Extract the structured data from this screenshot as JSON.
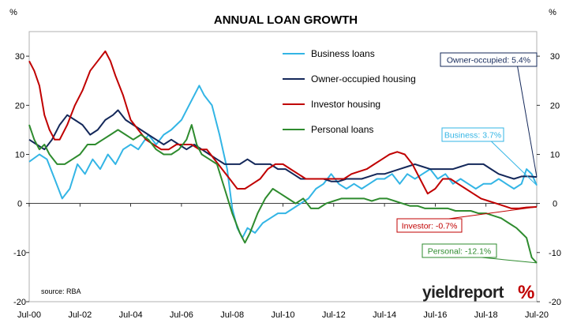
{
  "chart_data": {
    "type": "line",
    "title": "ANNUAL LOAN GROWTH",
    "ylabel_left": "%",
    "ylabel_right": "%",
    "ylim": [
      -20,
      35
    ],
    "yticks": [
      -20,
      -10,
      0,
      10,
      20,
      30
    ],
    "xlim": [
      2000.5,
      2020.5
    ],
    "xticks": [
      {
        "x": 2000.5,
        "label": "Jul-00"
      },
      {
        "x": 2002.5,
        "label": "Jul-02"
      },
      {
        "x": 2004.5,
        "label": "Jul-04"
      },
      {
        "x": 2006.5,
        "label": "Jul-06"
      },
      {
        "x": 2008.5,
        "label": "Jul-08"
      },
      {
        "x": 2010.5,
        "label": "Jul-10"
      },
      {
        "x": 2012.5,
        "label": "Jul-12"
      },
      {
        "x": 2014.5,
        "label": "Jul-14"
      },
      {
        "x": 2016.5,
        "label": "Jul-16"
      },
      {
        "x": 2018.5,
        "label": "Jul-18"
      },
      {
        "x": 2020.5,
        "label": "Jul-20"
      }
    ],
    "legend_position": "top-center",
    "source": "source: RBA",
    "series": [
      {
        "name": "Business loans",
        "color": "#33b5e5",
        "points": [
          [
            2000.5,
            8.5
          ],
          [
            2000.9,
            10
          ],
          [
            2001.2,
            9
          ],
          [
            2001.5,
            5
          ],
          [
            2001.8,
            1
          ],
          [
            2002.1,
            3
          ],
          [
            2002.4,
            8
          ],
          [
            2002.7,
            6
          ],
          [
            2003.0,
            9
          ],
          [
            2003.3,
            7
          ],
          [
            2003.6,
            10
          ],
          [
            2003.9,
            8
          ],
          [
            2004.2,
            11
          ],
          [
            2004.5,
            12
          ],
          [
            2004.8,
            11
          ],
          [
            2005.2,
            14
          ],
          [
            2005.5,
            12
          ],
          [
            2005.8,
            14
          ],
          [
            2006.1,
            15
          ],
          [
            2006.5,
            17
          ],
          [
            2006.8,
            20
          ],
          [
            2007.0,
            22
          ],
          [
            2007.2,
            24
          ],
          [
            2007.4,
            22
          ],
          [
            2007.7,
            20
          ],
          [
            2008.0,
            14
          ],
          [
            2008.3,
            7
          ],
          [
            2008.5,
            -1
          ],
          [
            2008.7,
            -5
          ],
          [
            2008.9,
            -7
          ],
          [
            2009.1,
            -5
          ],
          [
            2009.4,
            -6
          ],
          [
            2009.7,
            -4
          ],
          [
            2010.0,
            -3
          ],
          [
            2010.3,
            -2
          ],
          [
            2010.6,
            -2
          ],
          [
            2010.9,
            -1
          ],
          [
            2011.2,
            0
          ],
          [
            2011.5,
            1
          ],
          [
            2011.8,
            3
          ],
          [
            2012.1,
            4
          ],
          [
            2012.4,
            6
          ],
          [
            2012.7,
            4
          ],
          [
            2013.0,
            3
          ],
          [
            2013.3,
            4
          ],
          [
            2013.6,
            3
          ],
          [
            2013.9,
            4
          ],
          [
            2014.2,
            5
          ],
          [
            2014.5,
            5
          ],
          [
            2014.8,
            6
          ],
          [
            2015.1,
            4
          ],
          [
            2015.4,
            6
          ],
          [
            2015.7,
            5
          ],
          [
            2016.0,
            6
          ],
          [
            2016.3,
            7
          ],
          [
            2016.6,
            5
          ],
          [
            2016.9,
            6
          ],
          [
            2017.2,
            4
          ],
          [
            2017.5,
            5
          ],
          [
            2017.8,
            4
          ],
          [
            2018.1,
            3
          ],
          [
            2018.4,
            4
          ],
          [
            2018.7,
            4
          ],
          [
            2019.0,
            5
          ],
          [
            2019.3,
            4
          ],
          [
            2019.6,
            3
          ],
          [
            2019.9,
            4
          ],
          [
            2020.1,
            7
          ],
          [
            2020.3,
            6
          ],
          [
            2020.5,
            3.7
          ]
        ]
      },
      {
        "name": "Owner-occupied housing",
        "color": "#14285a",
        "points": [
          [
            2000.5,
            13
          ],
          [
            2000.8,
            12
          ],
          [
            2001.1,
            11
          ],
          [
            2001.4,
            13
          ],
          [
            2001.7,
            16
          ],
          [
            2002.0,
            18
          ],
          [
            2002.3,
            17
          ],
          [
            2002.6,
            16
          ],
          [
            2002.9,
            14
          ],
          [
            2003.2,
            15
          ],
          [
            2003.5,
            17
          ],
          [
            2003.8,
            18
          ],
          [
            2004.0,
            19
          ],
          [
            2004.3,
            17
          ],
          [
            2004.6,
            16
          ],
          [
            2004.9,
            15
          ],
          [
            2005.2,
            14
          ],
          [
            2005.5,
            13
          ],
          [
            2005.8,
            12
          ],
          [
            2006.1,
            13
          ],
          [
            2006.4,
            12
          ],
          [
            2006.7,
            11
          ],
          [
            2007.0,
            12
          ],
          [
            2007.3,
            11
          ],
          [
            2007.6,
            10
          ],
          [
            2007.9,
            9
          ],
          [
            2008.2,
            8
          ],
          [
            2008.5,
            8
          ],
          [
            2008.8,
            8
          ],
          [
            2009.1,
            9
          ],
          [
            2009.4,
            8
          ],
          [
            2009.7,
            8
          ],
          [
            2010.0,
            8
          ],
          [
            2010.3,
            7
          ],
          [
            2010.6,
            7
          ],
          [
            2010.9,
            6
          ],
          [
            2011.2,
            5
          ],
          [
            2011.5,
            5
          ],
          [
            2011.8,
            5
          ],
          [
            2012.1,
            5
          ],
          [
            2012.4,
            4.5
          ],
          [
            2012.7,
            4.5
          ],
          [
            2013.0,
            5
          ],
          [
            2013.3,
            5
          ],
          [
            2013.6,
            5
          ],
          [
            2013.9,
            5.5
          ],
          [
            2014.2,
            6
          ],
          [
            2014.5,
            6
          ],
          [
            2014.8,
            6.5
          ],
          [
            2015.1,
            7
          ],
          [
            2015.4,
            7.5
          ],
          [
            2015.7,
            8
          ],
          [
            2016.0,
            7.5
          ],
          [
            2016.3,
            7
          ],
          [
            2016.6,
            7
          ],
          [
            2016.9,
            7
          ],
          [
            2017.2,
            7
          ],
          [
            2017.5,
            7.5
          ],
          [
            2017.8,
            8
          ],
          [
            2018.1,
            8
          ],
          [
            2018.4,
            8
          ],
          [
            2018.7,
            7
          ],
          [
            2019.0,
            6
          ],
          [
            2019.3,
            5.5
          ],
          [
            2019.6,
            5
          ],
          [
            2019.9,
            5.5
          ],
          [
            2020.2,
            5.5
          ],
          [
            2020.5,
            5.4
          ]
        ]
      },
      {
        "name": "Investor housing",
        "color": "#c00000",
        "points": [
          [
            2000.5,
            29
          ],
          [
            2000.7,
            27
          ],
          [
            2000.9,
            24
          ],
          [
            2001.1,
            18
          ],
          [
            2001.3,
            15
          ],
          [
            2001.5,
            13
          ],
          [
            2001.7,
            13
          ],
          [
            2002.0,
            16
          ],
          [
            2002.3,
            20
          ],
          [
            2002.6,
            23
          ],
          [
            2002.9,
            27
          ],
          [
            2003.2,
            29
          ],
          [
            2003.5,
            31
          ],
          [
            2003.7,
            29
          ],
          [
            2003.9,
            26
          ],
          [
            2004.2,
            22
          ],
          [
            2004.5,
            17
          ],
          [
            2004.8,
            15
          ],
          [
            2005.1,
            13
          ],
          [
            2005.4,
            12
          ],
          [
            2005.7,
            11
          ],
          [
            2006.0,
            11
          ],
          [
            2006.3,
            12
          ],
          [
            2006.6,
            12
          ],
          [
            2006.9,
            12
          ],
          [
            2007.2,
            11
          ],
          [
            2007.5,
            11
          ],
          [
            2007.8,
            9
          ],
          [
            2008.1,
            7
          ],
          [
            2008.4,
            5
          ],
          [
            2008.7,
            3
          ],
          [
            2009.0,
            3
          ],
          [
            2009.3,
            4
          ],
          [
            2009.6,
            5
          ],
          [
            2009.9,
            7
          ],
          [
            2010.2,
            8
          ],
          [
            2010.5,
            8
          ],
          [
            2010.8,
            7
          ],
          [
            2011.1,
            6
          ],
          [
            2011.4,
            5
          ],
          [
            2011.7,
            5
          ],
          [
            2012.0,
            5
          ],
          [
            2012.3,
            5
          ],
          [
            2012.6,
            5
          ],
          [
            2012.9,
            5
          ],
          [
            2013.2,
            6
          ],
          [
            2013.5,
            6.5
          ],
          [
            2013.8,
            7
          ],
          [
            2014.1,
            8
          ],
          [
            2014.4,
            9
          ],
          [
            2014.7,
            10
          ],
          [
            2015.0,
            10.5
          ],
          [
            2015.3,
            10
          ],
          [
            2015.6,
            8
          ],
          [
            2015.9,
            5
          ],
          [
            2016.2,
            2
          ],
          [
            2016.5,
            3
          ],
          [
            2016.8,
            5
          ],
          [
            2017.1,
            5
          ],
          [
            2017.4,
            4
          ],
          [
            2017.7,
            3
          ],
          [
            2018.0,
            2
          ],
          [
            2018.3,
            1
          ],
          [
            2018.6,
            0.5
          ],
          [
            2018.9,
            0
          ],
          [
            2019.2,
            -0.5
          ],
          [
            2019.5,
            -1
          ],
          [
            2019.8,
            -1
          ],
          [
            2020.1,
            -0.8
          ],
          [
            2020.5,
            -0.7
          ]
        ]
      },
      {
        "name": "Personal loans",
        "color": "#2e8b2e",
        "points": [
          [
            2000.5,
            16
          ],
          [
            2000.7,
            13
          ],
          [
            2000.9,
            11
          ],
          [
            2001.1,
            12
          ],
          [
            2001.3,
            10
          ],
          [
            2001.6,
            8
          ],
          [
            2001.9,
            8
          ],
          [
            2002.2,
            9
          ],
          [
            2002.5,
            10
          ],
          [
            2002.8,
            12
          ],
          [
            2003.1,
            12
          ],
          [
            2003.4,
            13
          ],
          [
            2003.7,
            14
          ],
          [
            2004.0,
            15
          ],
          [
            2004.3,
            14
          ],
          [
            2004.6,
            13
          ],
          [
            2004.9,
            14
          ],
          [
            2005.2,
            13
          ],
          [
            2005.5,
            11
          ],
          [
            2005.8,
            10
          ],
          [
            2006.1,
            10
          ],
          [
            2006.4,
            11
          ],
          [
            2006.7,
            13
          ],
          [
            2006.9,
            16
          ],
          [
            2007.1,
            12
          ],
          [
            2007.3,
            10
          ],
          [
            2007.6,
            9
          ],
          [
            2007.9,
            8
          ],
          [
            2008.2,
            3
          ],
          [
            2008.5,
            -2
          ],
          [
            2008.8,
            -6
          ],
          [
            2009.0,
            -8
          ],
          [
            2009.2,
            -6
          ],
          [
            2009.5,
            -2
          ],
          [
            2009.8,
            1
          ],
          [
            2010.1,
            3
          ],
          [
            2010.4,
            2
          ],
          [
            2010.7,
            1
          ],
          [
            2011.0,
            0
          ],
          [
            2011.3,
            1
          ],
          [
            2011.6,
            -1
          ],
          [
            2011.9,
            -1
          ],
          [
            2012.2,
            0
          ],
          [
            2012.5,
            0.5
          ],
          [
            2012.8,
            1
          ],
          [
            2013.1,
            1
          ],
          [
            2013.4,
            1
          ],
          [
            2013.7,
            1
          ],
          [
            2014.0,
            0.5
          ],
          [
            2014.3,
            1
          ],
          [
            2014.6,
            1
          ],
          [
            2014.9,
            0.5
          ],
          [
            2015.2,
            0
          ],
          [
            2015.5,
            -0.5
          ],
          [
            2015.8,
            -0.5
          ],
          [
            2016.1,
            -1
          ],
          [
            2016.4,
            -1
          ],
          [
            2016.7,
            -1
          ],
          [
            2017.0,
            -1
          ],
          [
            2017.3,
            -1.5
          ],
          [
            2017.6,
            -1.5
          ],
          [
            2017.9,
            -1.5
          ],
          [
            2018.2,
            -2
          ],
          [
            2018.5,
            -2
          ],
          [
            2018.8,
            -2.5
          ],
          [
            2019.1,
            -3
          ],
          [
            2019.4,
            -4
          ],
          [
            2019.7,
            -5
          ],
          [
            2019.9,
            -6
          ],
          [
            2020.1,
            -7
          ],
          [
            2020.3,
            -11
          ],
          [
            2020.5,
            -12.1
          ]
        ]
      }
    ],
    "callouts": [
      {
        "text": "Owner-occupied: 5.4%",
        "series": "Owner-occupied housing",
        "x": 2020.5,
        "y": 5.4
      },
      {
        "text": "Business: 3.7%",
        "series": "Business loans",
        "x": 2020.5,
        "y": 3.7
      },
      {
        "text": "Investor: -0.7%",
        "series": "Investor housing",
        "x": 2020.5,
        "y": -0.7
      },
      {
        "text": "Personal: -12.1%",
        "series": "Personal loans",
        "x": 2020.5,
        "y": -12.1
      }
    ]
  },
  "brand": {
    "name": "yieldreport",
    "symbol": "%"
  }
}
